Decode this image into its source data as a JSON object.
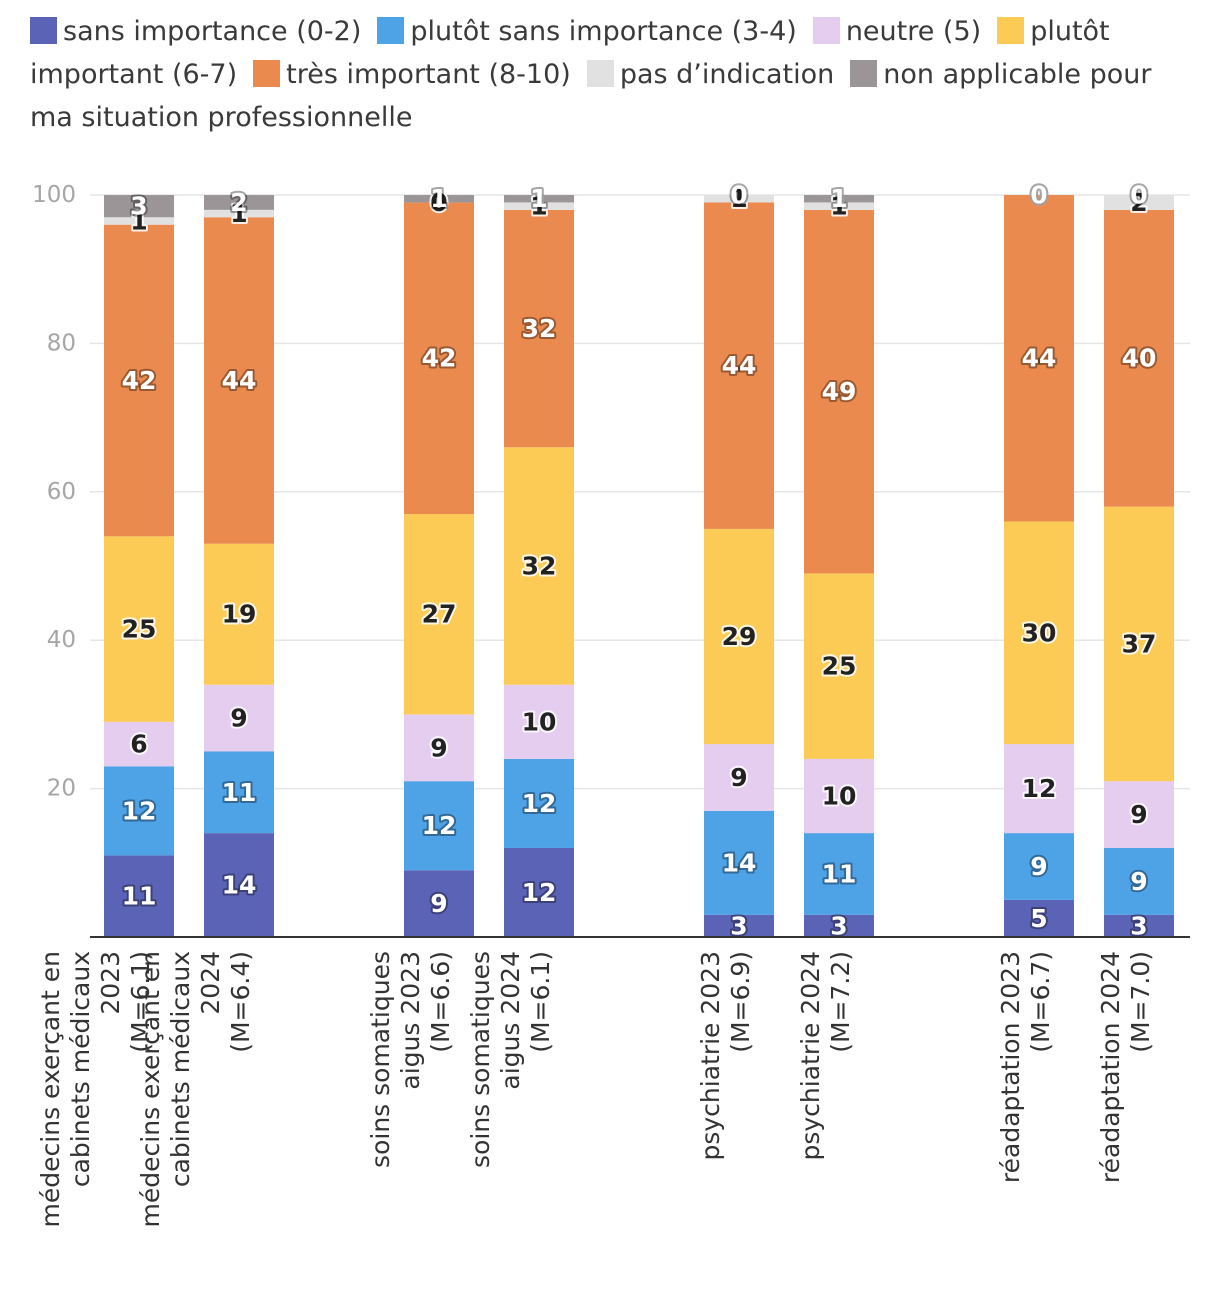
{
  "chart_data": {
    "type": "bar",
    "stacked": true,
    "ylim": [
      0,
      100
    ],
    "yticks": [
      20,
      40,
      60,
      80,
      100
    ],
    "legend_position": "top",
    "series": [
      {
        "name": "sans importance (0-2)",
        "color": "#5b63b7",
        "label_color": "#ffffff",
        "values": [
          11,
          14,
          9,
          12,
          3,
          3,
          5,
          3
        ]
      },
      {
        "name": "plutôt sans importance (3-4)",
        "color": "#4ea2e6",
        "label_color": "#ffffff",
        "values": [
          12,
          11,
          12,
          12,
          14,
          11,
          9,
          9
        ]
      },
      {
        "name": "neutre (5)",
        "color": "#e4cdee",
        "label_color": "#222222",
        "values": [
          6,
          9,
          9,
          10,
          9,
          10,
          12,
          9
        ]
      },
      {
        "name": "plutôt important (6-7)",
        "color": "#fbcb56",
        "label_color": "#222222",
        "values": [
          25,
          19,
          27,
          32,
          29,
          25,
          30,
          37
        ]
      },
      {
        "name": "très important (8-10)",
        "color": "#eb8a4f",
        "label_color": "#ffffff",
        "values": [
          42,
          44,
          42,
          32,
          44,
          49,
          44,
          40
        ]
      },
      {
        "name": "pas d’indication",
        "color": "#e1e1e1",
        "label_color": "#222222",
        "values": [
          1,
          1,
          0,
          1,
          1,
          1,
          0,
          2
        ]
      },
      {
        "name": "non applicable pour ma situation professionnelle",
        "color": "#9b9597",
        "label_color": "#ffffff",
        "values": [
          3,
          2,
          1,
          1,
          0,
          1,
          0,
          0
        ]
      }
    ],
    "categories": [
      {
        "lines": [
          "médecins exerçant en",
          "cabinets médicaux",
          "2023",
          "(M=6.1)"
        ]
      },
      {
        "lines": [
          "médecins exerçant en",
          "cabinets médicaux",
          "2024",
          "(M=6.4)"
        ]
      },
      {
        "lines": [
          "soins somatiques",
          "aigus 2023",
          "(M=6.6)"
        ]
      },
      {
        "lines": [
          "soins somatiques",
          "aigus 2024",
          "(M=6.1)"
        ]
      },
      {
        "lines": [
          "psychiatrie 2023",
          "(M=6.9)"
        ]
      },
      {
        "lines": [
          "psychiatrie 2024",
          "(M=7.2)"
        ]
      },
      {
        "lines": [
          "réadaptation 2023",
          "(M=6.7)"
        ]
      },
      {
        "lines": [
          "réadaptation 2024",
          "(M=7.0)"
        ]
      }
    ]
  }
}
